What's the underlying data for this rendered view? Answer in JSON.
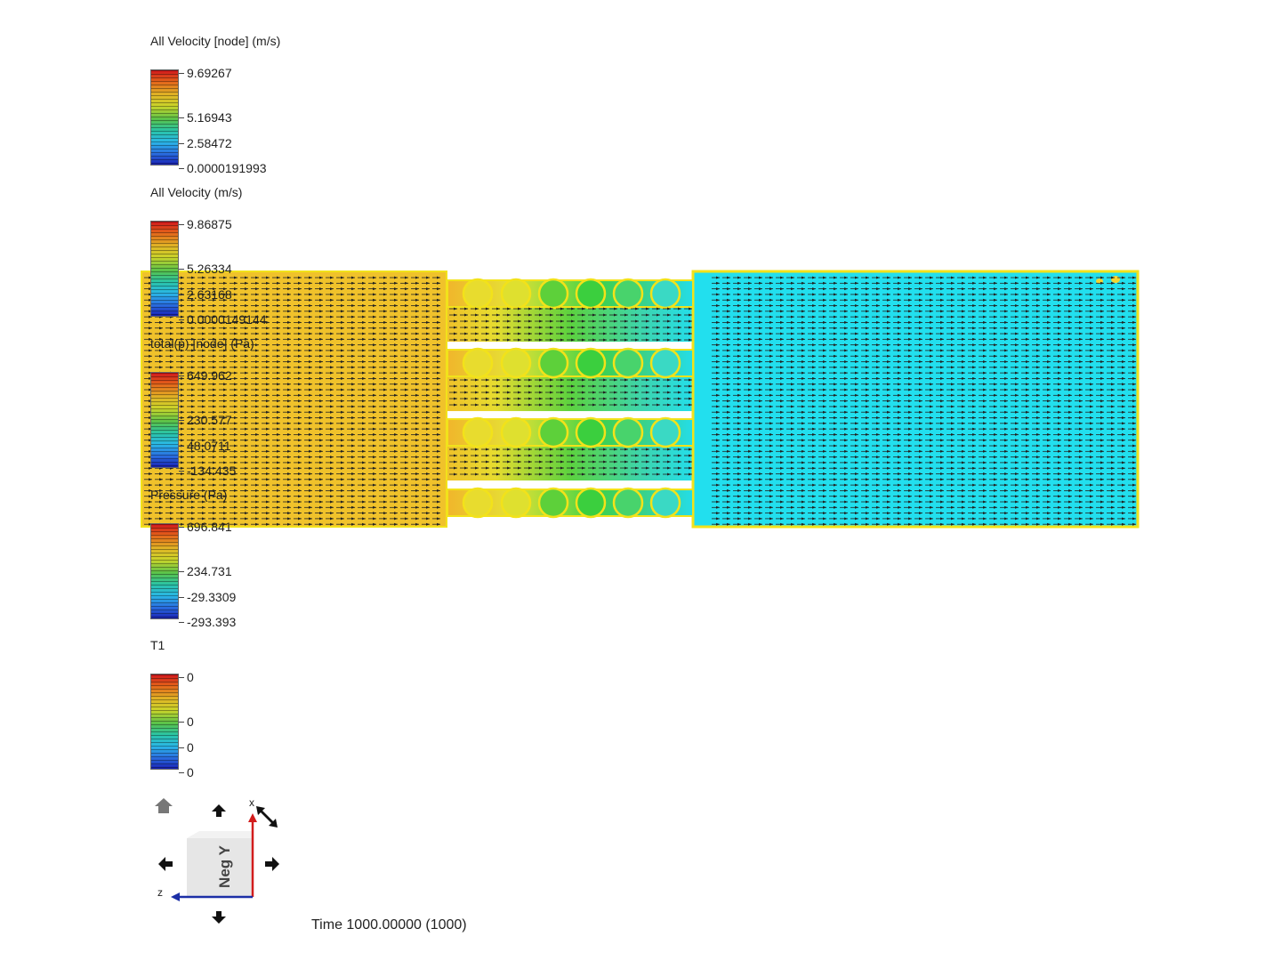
{
  "legends": [
    {
      "title": "All Velocity [node] (m/s)",
      "ticks": [
        "9.69267",
        "5.16943",
        "2.58472",
        "0.0000191993"
      ]
    },
    {
      "title": "All Velocity (m/s)",
      "ticks": [
        "9.86875",
        "5.26334",
        "2.63168",
        "0.0000149144"
      ]
    },
    {
      "title": "total(p) [node] (Pa)",
      "ticks": [
        "649.962",
        "230.577",
        "48.0711",
        "-134.435"
      ]
    },
    {
      "title": "Pressure (Pa)",
      "ticks": [
        "696.841",
        "234.731",
        "-29.3309",
        "-293.393"
      ]
    },
    {
      "title": "T1",
      "ticks": [
        "0",
        "0",
        "0",
        "0"
      ]
    }
  ],
  "view_cube": {
    "label": "Neg Y",
    "axis_x": "x",
    "axis_z": "z"
  },
  "time_readout": "Time 1000.00000 (1000)",
  "colors": {
    "inlet": "#f0c22b",
    "outlet": "#22dfee",
    "tube_green": "#3fd13f",
    "outline": "#f2e21a",
    "axis_x": "#d21c1c",
    "axis_z": "#1c2fa6"
  },
  "icons": [
    "home-icon",
    "arrow-up-icon",
    "arrow-down-icon",
    "arrow-left-icon",
    "arrow-right-icon",
    "rotate-icon"
  ]
}
